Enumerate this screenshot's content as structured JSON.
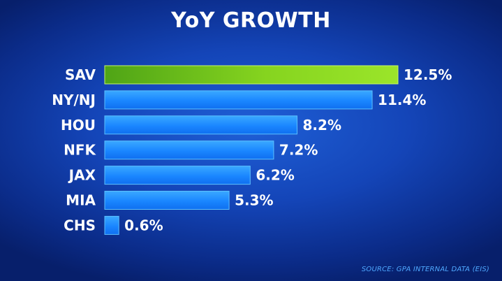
{
  "chart_data": {
    "type": "bar",
    "orientation": "horizontal",
    "title": "YoY GROWTH",
    "categories": [
      "SAV",
      "NY/NJ",
      "HOU",
      "NFK",
      "JAX",
      "MIA",
      "CHS"
    ],
    "values": [
      12.5,
      11.4,
      8.2,
      7.2,
      6.2,
      5.3,
      0.6
    ],
    "value_labels": [
      "12.5%",
      "11.4%",
      "8.2%",
      "7.2%",
      "6.2%",
      "5.3%",
      "0.6%"
    ],
    "highlight_index": 0,
    "grid": false,
    "legend": "none"
  },
  "source": "SOURCE: GPA INTERNAL DATA (EIS)",
  "colors": {
    "bar": "#1a8cff",
    "bar_highlight": "#7ed321",
    "source_text": "#4fa8ff"
  }
}
